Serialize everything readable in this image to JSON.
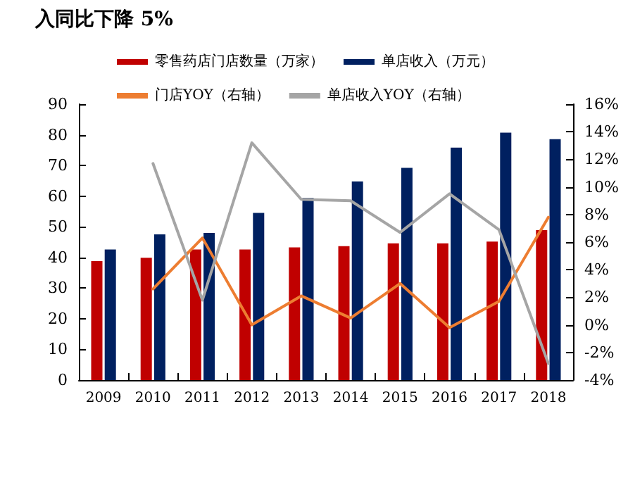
{
  "chart_data": {
    "type": "bar",
    "title": "入同比下降 5%",
    "categories": [
      "2009",
      "2010",
      "2011",
      "2012",
      "2013",
      "2014",
      "2015",
      "2016",
      "2017",
      "2018"
    ],
    "series": [
      {
        "name": "零售药店门店数量（万家）",
        "color": "#c00000",
        "values": [
          38.8,
          39.9,
          42.6,
          42.6,
          43.3,
          43.7,
          44.6,
          44.6,
          45.2,
          48.9
        ]
      },
      {
        "name": "单店收入（万元）",
        "color": "#002060",
        "values": [
          42.6,
          47.5,
          48.0,
          54.5,
          59.4,
          64.8,
          69.2,
          75.8,
          80.7,
          78.6
        ]
      },
      {
        "name": "门店YOY（右轴）",
        "type": "line",
        "axis": "y2",
        "color": "#ed7d31",
        "values": [
          null,
          2.6,
          6.3,
          0.0,
          2.1,
          0.5,
          3.0,
          -0.2,
          1.7,
          7.8
        ]
      },
      {
        "name": "单店收入YOY（右轴）",
        "type": "line",
        "axis": "y2",
        "color": "#a5a5a5",
        "values": [
          null,
          11.7,
          1.8,
          13.2,
          9.1,
          9.0,
          6.7,
          9.5,
          6.9,
          -2.8
        ]
      }
    ],
    "ylim": [
      0,
      90
    ],
    "yticks": [
      0,
      10,
      20,
      30,
      40,
      50,
      60,
      70,
      80,
      90
    ],
    "y2lim": [
      -4,
      16
    ],
    "y2ticks": [
      {
        "value": -4,
        "label": "-4%"
      },
      {
        "value": -2,
        "label": "-2%"
      },
      {
        "value": 0,
        "label": "0%"
      },
      {
        "value": 2,
        "label": "2%"
      },
      {
        "value": 4,
        "label": "4%"
      },
      {
        "value": 6,
        "label": "6%"
      },
      {
        "value": 8,
        "label": "8%"
      },
      {
        "value": 10,
        "label": "10%"
      },
      {
        "value": 12,
        "label": "12%"
      },
      {
        "value": 14,
        "label": "14%"
      },
      {
        "value": 16,
        "label": "16%"
      }
    ],
    "grid": false,
    "legend": "top",
    "marker": "none",
    "line_style": "solid"
  }
}
